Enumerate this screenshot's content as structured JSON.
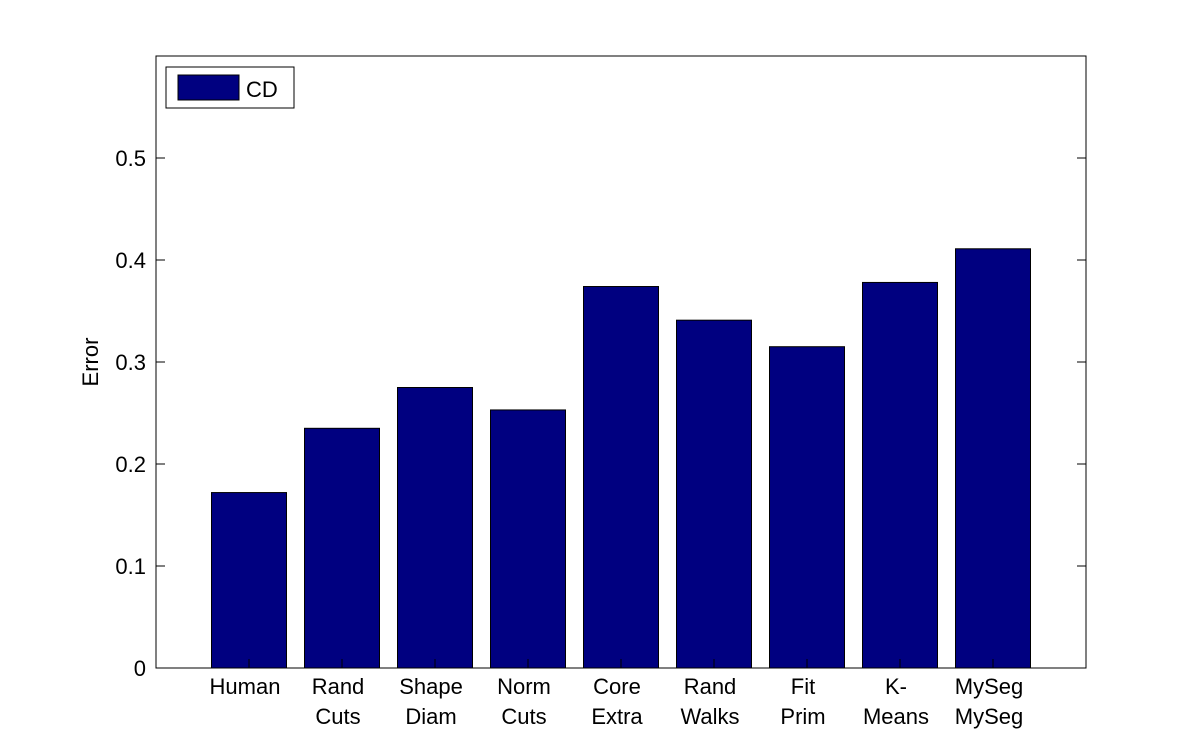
{
  "chart_data": {
    "type": "bar",
    "title": "",
    "xlabel": "",
    "ylabel": "Error",
    "ylim": [
      0,
      0.6
    ],
    "yticks": [
      0,
      0.1,
      0.2,
      0.3,
      0.4,
      0.5
    ],
    "ytick_labels": [
      "0",
      "0.1",
      "0.2",
      "0.3",
      "0.4",
      "0.5"
    ],
    "categories": [
      [
        "Human"
      ],
      [
        "Rand",
        "Cuts"
      ],
      [
        "Shape",
        "Diam"
      ],
      [
        "Norm",
        "Cuts"
      ],
      [
        "Core",
        "Extra"
      ],
      [
        "Rand",
        "Walks"
      ],
      [
        "Fit",
        "Prim"
      ],
      [
        "K-",
        "Means"
      ],
      [
        "MySeg",
        "MySeg"
      ]
    ],
    "series": [
      {
        "name": "CD",
        "color": "#000080",
        "values": [
          0.172,
          0.235,
          0.275,
          0.253,
          0.374,
          0.341,
          0.315,
          0.378,
          0.411
        ]
      }
    ],
    "legend": {
      "position": "top-left",
      "entries": [
        "CD"
      ]
    },
    "grid": false
  }
}
